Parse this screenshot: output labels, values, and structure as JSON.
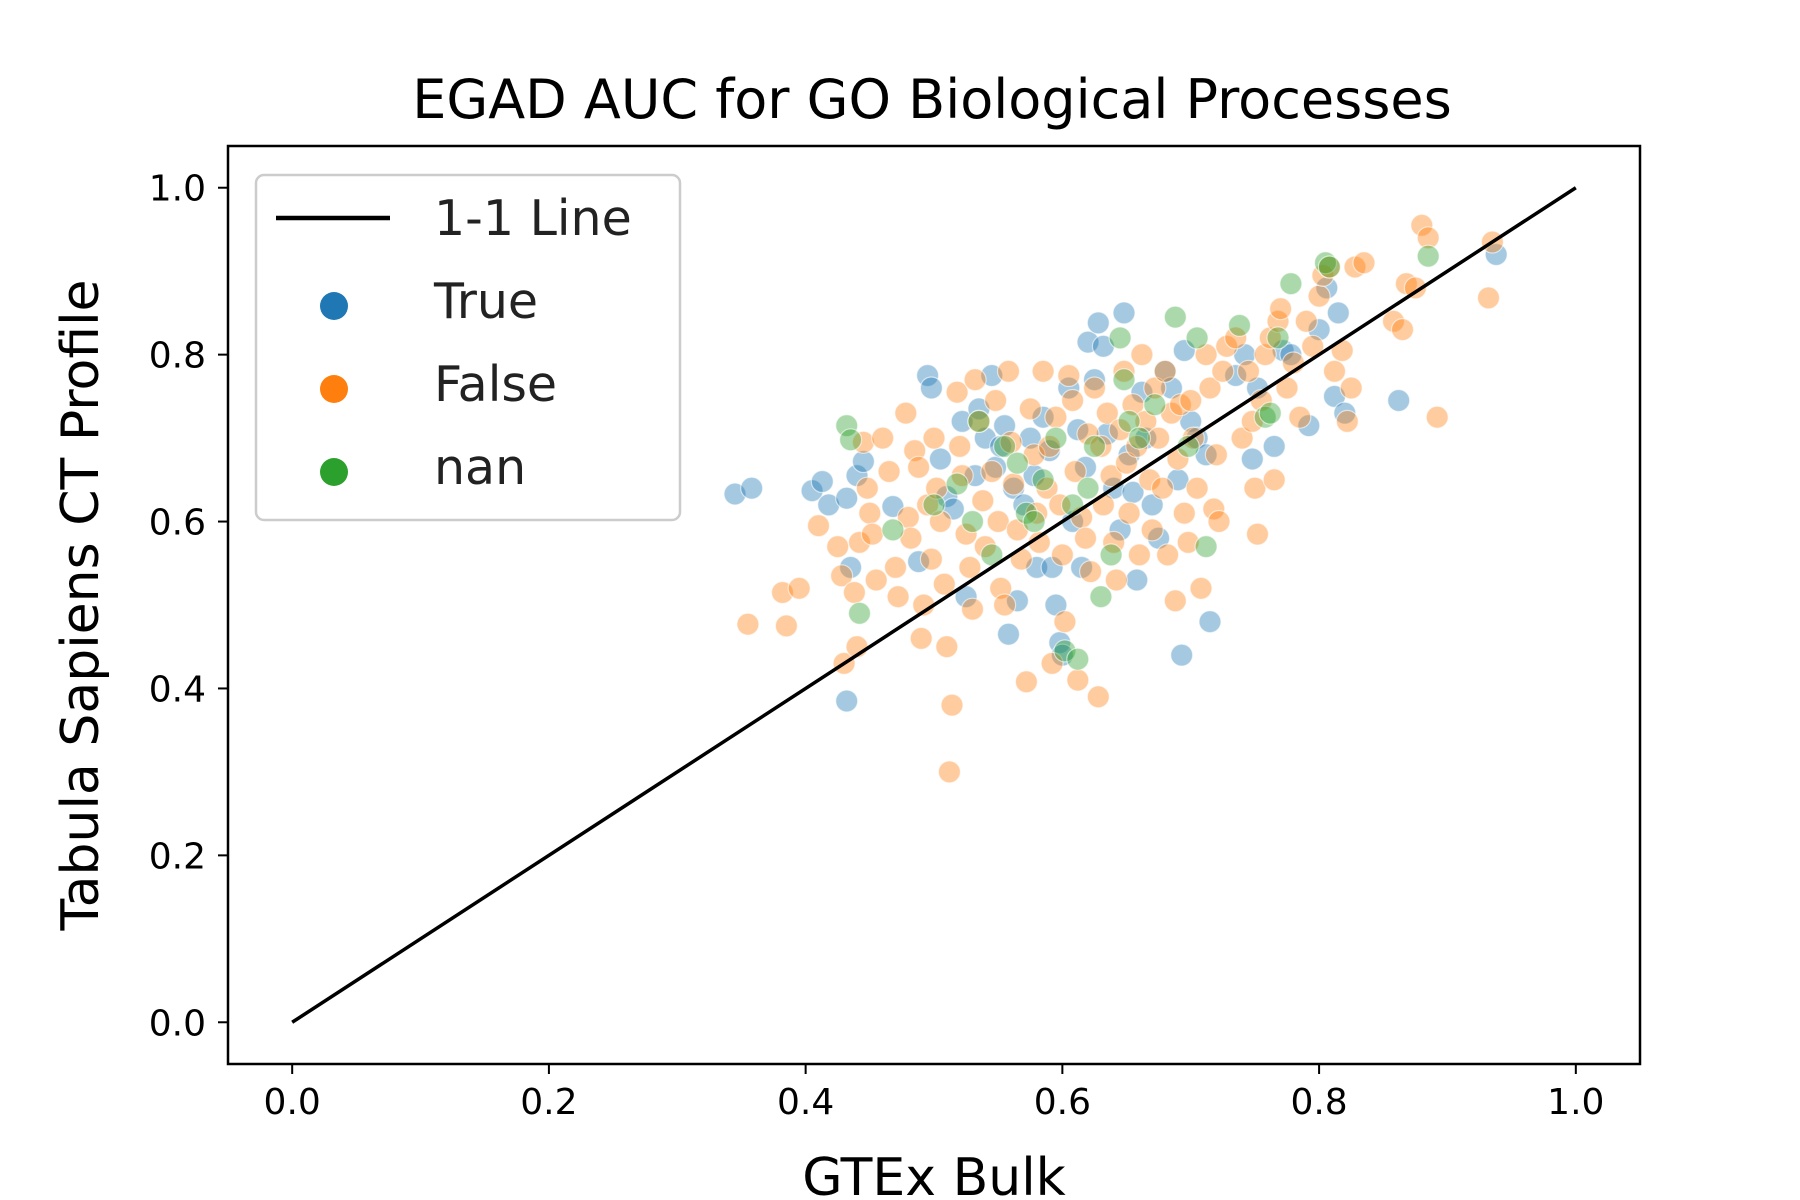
{
  "colors": {
    "True": "#1f77b4",
    "False": "#ff7f0e",
    "nan": "#2ca02c",
    "line": "#000000"
  },
  "chart_data": {
    "type": "scatter",
    "title": "EGAD AUC for GO Biological Processes",
    "xlabel": "GTEx Bulk",
    "ylabel": "Tabula Sapiens CT Profile",
    "xlim": [
      -0.05,
      1.05
    ],
    "ylim": [
      -0.05,
      1.05
    ],
    "xticks": [
      0.0,
      0.2,
      0.4,
      0.6,
      0.8,
      1.0
    ],
    "yticks": [
      0.0,
      0.2,
      0.4,
      0.6,
      0.8,
      1.0
    ],
    "xtick_labels": [
      "0.0",
      "0.2",
      "0.4",
      "0.6",
      "0.8",
      "1.0"
    ],
    "ytick_labels": [
      "0.0",
      "0.2",
      "0.4",
      "0.6",
      "0.8",
      "1.0"
    ],
    "grid": false,
    "legend_position": "top-left",
    "legend": [
      "1-1 Line",
      "True",
      "False",
      "nan"
    ],
    "reference_line": {
      "name": "1-1 Line",
      "x": [
        0.0,
        1.0
      ],
      "y": [
        0.0,
        1.0
      ]
    },
    "series": [
      {
        "name": "True",
        "points": [
          [
            0.345,
            0.633
          ],
          [
            0.358,
            0.64
          ],
          [
            0.405,
            0.637
          ],
          [
            0.413,
            0.648
          ],
          [
            0.418,
            0.62
          ],
          [
            0.432,
            0.628
          ],
          [
            0.44,
            0.655
          ],
          [
            0.445,
            0.672
          ],
          [
            0.435,
            0.545
          ],
          [
            0.432,
            0.385
          ],
          [
            0.468,
            0.618
          ],
          [
            0.488,
            0.552
          ],
          [
            0.495,
            0.775
          ],
          [
            0.498,
            0.76
          ],
          [
            0.505,
            0.675
          ],
          [
            0.51,
            0.63
          ],
          [
            0.515,
            0.615
          ],
          [
            0.522,
            0.72
          ],
          [
            0.525,
            0.51
          ],
          [
            0.532,
            0.655
          ],
          [
            0.535,
            0.735
          ],
          [
            0.54,
            0.7
          ],
          [
            0.545,
            0.775
          ],
          [
            0.548,
            0.665
          ],
          [
            0.552,
            0.69
          ],
          [
            0.555,
            0.715
          ],
          [
            0.558,
            0.465
          ],
          [
            0.562,
            0.64
          ],
          [
            0.565,
            0.505
          ],
          [
            0.57,
            0.62
          ],
          [
            0.575,
            0.7
          ],
          [
            0.578,
            0.655
          ],
          [
            0.58,
            0.545
          ],
          [
            0.585,
            0.725
          ],
          [
            0.59,
            0.685
          ],
          [
            0.592,
            0.545
          ],
          [
            0.595,
            0.5
          ],
          [
            0.598,
            0.455
          ],
          [
            0.6,
            0.44
          ],
          [
            0.605,
            0.76
          ],
          [
            0.608,
            0.6
          ],
          [
            0.612,
            0.71
          ],
          [
            0.615,
            0.545
          ],
          [
            0.618,
            0.665
          ],
          [
            0.62,
            0.815
          ],
          [
            0.625,
            0.77
          ],
          [
            0.628,
            0.838
          ],
          [
            0.632,
            0.81
          ],
          [
            0.635,
            0.705
          ],
          [
            0.64,
            0.64
          ],
          [
            0.645,
            0.59
          ],
          [
            0.648,
            0.85
          ],
          [
            0.652,
            0.68
          ],
          [
            0.655,
            0.635
          ],
          [
            0.658,
            0.53
          ],
          [
            0.662,
            0.755
          ],
          [
            0.665,
            0.7
          ],
          [
            0.67,
            0.62
          ],
          [
            0.675,
            0.58
          ],
          [
            0.68,
            0.78
          ],
          [
            0.685,
            0.76
          ],
          [
            0.69,
            0.65
          ],
          [
            0.695,
            0.805
          ],
          [
            0.693,
            0.44
          ],
          [
            0.7,
            0.72
          ],
          [
            0.705,
            0.7
          ],
          [
            0.712,
            0.68
          ],
          [
            0.715,
            0.48
          ],
          [
            0.735,
            0.775
          ],
          [
            0.742,
            0.8
          ],
          [
            0.748,
            0.675
          ],
          [
            0.752,
            0.76
          ],
          [
            0.765,
            0.69
          ],
          [
            0.772,
            0.805
          ],
          [
            0.778,
            0.8
          ],
          [
            0.792,
            0.715
          ],
          [
            0.8,
            0.83
          ],
          [
            0.806,
            0.88
          ],
          [
            0.815,
            0.85
          ],
          [
            0.812,
            0.75
          ],
          [
            0.82,
            0.73
          ],
          [
            0.862,
            0.745
          ],
          [
            0.938,
            0.92
          ]
        ]
      },
      {
        "name": "False",
        "points": [
          [
            0.355,
            0.477
          ],
          [
            0.382,
            0.515
          ],
          [
            0.385,
            0.475
          ],
          [
            0.395,
            0.52
          ],
          [
            0.41,
            0.595
          ],
          [
            0.425,
            0.57
          ],
          [
            0.428,
            0.535
          ],
          [
            0.43,
            0.43
          ],
          [
            0.438,
            0.515
          ],
          [
            0.44,
            0.45
          ],
          [
            0.442,
            0.575
          ],
          [
            0.445,
            0.695
          ],
          [
            0.448,
            0.64
          ],
          [
            0.45,
            0.61
          ],
          [
            0.452,
            0.585
          ],
          [
            0.455,
            0.53
          ],
          [
            0.46,
            0.7
          ],
          [
            0.465,
            0.66
          ],
          [
            0.47,
            0.545
          ],
          [
            0.472,
            0.51
          ],
          [
            0.478,
            0.73
          ],
          [
            0.48,
            0.605
          ],
          [
            0.482,
            0.58
          ],
          [
            0.485,
            0.685
          ],
          [
            0.488,
            0.665
          ],
          [
            0.49,
            0.46
          ],
          [
            0.492,
            0.5
          ],
          [
            0.495,
            0.62
          ],
          [
            0.498,
            0.555
          ],
          [
            0.5,
            0.7
          ],
          [
            0.502,
            0.64
          ],
          [
            0.505,
            0.6
          ],
          [
            0.508,
            0.525
          ],
          [
            0.51,
            0.45
          ],
          [
            0.512,
            0.3
          ],
          [
            0.514,
            0.38
          ],
          [
            0.518,
            0.755
          ],
          [
            0.52,
            0.69
          ],
          [
            0.522,
            0.655
          ],
          [
            0.525,
            0.585
          ],
          [
            0.528,
            0.545
          ],
          [
            0.53,
            0.495
          ],
          [
            0.532,
            0.77
          ],
          [
            0.535,
            0.72
          ],
          [
            0.538,
            0.625
          ],
          [
            0.54,
            0.57
          ],
          [
            0.545,
            0.66
          ],
          [
            0.548,
            0.745
          ],
          [
            0.55,
            0.6
          ],
          [
            0.552,
            0.52
          ],
          [
            0.555,
            0.5
          ],
          [
            0.558,
            0.78
          ],
          [
            0.56,
            0.695
          ],
          [
            0.562,
            0.645
          ],
          [
            0.565,
            0.59
          ],
          [
            0.568,
            0.555
          ],
          [
            0.572,
            0.408
          ],
          [
            0.575,
            0.735
          ],
          [
            0.578,
            0.68
          ],
          [
            0.58,
            0.61
          ],
          [
            0.582,
            0.575
          ],
          [
            0.585,
            0.78
          ],
          [
            0.588,
            0.64
          ],
          [
            0.59,
            0.69
          ],
          [
            0.592,
            0.43
          ],
          [
            0.595,
            0.725
          ],
          [
            0.598,
            0.62
          ],
          [
            0.6,
            0.56
          ],
          [
            0.602,
            0.48
          ],
          [
            0.605,
            0.775
          ],
          [
            0.608,
            0.745
          ],
          [
            0.61,
            0.66
          ],
          [
            0.612,
            0.41
          ],
          [
            0.615,
            0.605
          ],
          [
            0.618,
            0.58
          ],
          [
            0.62,
            0.705
          ],
          [
            0.622,
            0.54
          ],
          [
            0.625,
            0.76
          ],
          [
            0.628,
            0.39
          ],
          [
            0.63,
            0.69
          ],
          [
            0.632,
            0.62
          ],
          [
            0.635,
            0.73
          ],
          [
            0.638,
            0.655
          ],
          [
            0.64,
            0.575
          ],
          [
            0.642,
            0.53
          ],
          [
            0.645,
            0.71
          ],
          [
            0.648,
            0.78
          ],
          [
            0.65,
            0.67
          ],
          [
            0.652,
            0.61
          ],
          [
            0.655,
            0.74
          ],
          [
            0.658,
            0.69
          ],
          [
            0.66,
            0.56
          ],
          [
            0.662,
            0.8
          ],
          [
            0.665,
            0.72
          ],
          [
            0.668,
            0.65
          ],
          [
            0.67,
            0.59
          ],
          [
            0.672,
            0.76
          ],
          [
            0.675,
            0.7
          ],
          [
            0.678,
            0.64
          ],
          [
            0.68,
            0.78
          ],
          [
            0.682,
            0.56
          ],
          [
            0.685,
            0.73
          ],
          [
            0.688,
            0.505
          ],
          [
            0.69,
            0.675
          ],
          [
            0.692,
            0.74
          ],
          [
            0.695,
            0.61
          ],
          [
            0.698,
            0.575
          ],
          [
            0.7,
            0.745
          ],
          [
            0.702,
            0.7
          ],
          [
            0.705,
            0.64
          ],
          [
            0.708,
            0.52
          ],
          [
            0.712,
            0.8
          ],
          [
            0.715,
            0.76
          ],
          [
            0.718,
            0.615
          ],
          [
            0.72,
            0.68
          ],
          [
            0.722,
            0.6
          ],
          [
            0.725,
            0.78
          ],
          [
            0.728,
            0.81
          ],
          [
            0.735,
            0.82
          ],
          [
            0.74,
            0.7
          ],
          [
            0.745,
            0.78
          ],
          [
            0.748,
            0.72
          ],
          [
            0.75,
            0.64
          ],
          [
            0.752,
            0.585
          ],
          [
            0.755,
            0.745
          ],
          [
            0.758,
            0.8
          ],
          [
            0.762,
            0.82
          ],
          [
            0.765,
            0.65
          ],
          [
            0.768,
            0.84
          ],
          [
            0.77,
            0.855
          ],
          [
            0.775,
            0.76
          ],
          [
            0.78,
            0.79
          ],
          [
            0.785,
            0.725
          ],
          [
            0.79,
            0.84
          ],
          [
            0.795,
            0.81
          ],
          [
            0.8,
            0.87
          ],
          [
            0.803,
            0.895
          ],
          [
            0.808,
            0.905
          ],
          [
            0.812,
            0.78
          ],
          [
            0.818,
            0.805
          ],
          [
            0.822,
            0.72
          ],
          [
            0.825,
            0.76
          ],
          [
            0.828,
            0.905
          ],
          [
            0.835,
            0.91
          ],
          [
            0.858,
            0.84
          ],
          [
            0.865,
            0.83
          ],
          [
            0.868,
            0.885
          ],
          [
            0.875,
            0.88
          ],
          [
            0.88,
            0.955
          ],
          [
            0.885,
            0.94
          ],
          [
            0.892,
            0.725
          ],
          [
            0.932,
            0.868
          ],
          [
            0.935,
            0.935
          ]
        ]
      },
      {
        "name": "nan",
        "points": [
          [
            0.432,
            0.715
          ],
          [
            0.435,
            0.698
          ],
          [
            0.442,
            0.49
          ],
          [
            0.468,
            0.59
          ],
          [
            0.5,
            0.62
          ],
          [
            0.518,
            0.645
          ],
          [
            0.53,
            0.6
          ],
          [
            0.535,
            0.72
          ],
          [
            0.545,
            0.56
          ],
          [
            0.555,
            0.69
          ],
          [
            0.565,
            0.67
          ],
          [
            0.572,
            0.61
          ],
          [
            0.578,
            0.6
          ],
          [
            0.585,
            0.65
          ],
          [
            0.595,
            0.7
          ],
          [
            0.602,
            0.445
          ],
          [
            0.608,
            0.62
          ],
          [
            0.612,
            0.435
          ],
          [
            0.62,
            0.64
          ],
          [
            0.625,
            0.69
          ],
          [
            0.63,
            0.51
          ],
          [
            0.638,
            0.56
          ],
          [
            0.645,
            0.82
          ],
          [
            0.648,
            0.77
          ],
          [
            0.652,
            0.72
          ],
          [
            0.66,
            0.7
          ],
          [
            0.672,
            0.74
          ],
          [
            0.688,
            0.845
          ],
          [
            0.698,
            0.69
          ],
          [
            0.705,
            0.82
          ],
          [
            0.712,
            0.57
          ],
          [
            0.738,
            0.835
          ],
          [
            0.758,
            0.725
          ],
          [
            0.762,
            0.73
          ],
          [
            0.768,
            0.82
          ],
          [
            0.778,
            0.885
          ],
          [
            0.805,
            0.91
          ],
          [
            0.808,
            0.905
          ],
          [
            0.885,
            0.918
          ]
        ]
      }
    ]
  }
}
